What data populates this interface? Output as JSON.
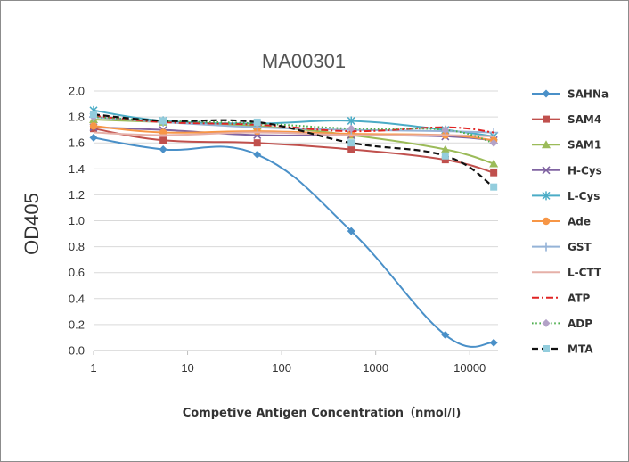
{
  "chart_data": {
    "type": "line",
    "title": "MA00301",
    "xlabel": "Competive Antigen Concentration（nmol/l)",
    "ylabel": "OD405",
    "x_scale": "log",
    "xlim": [
      1,
      20000
    ],
    "ylim": [
      0,
      2.0
    ],
    "x_ticks": [
      "1",
      "10",
      "100",
      "1000",
      "10000"
    ],
    "y_ticks": [
      "0.0",
      "0.2",
      "0.4",
      "0.6",
      "0.8",
      "1.0",
      "1.2",
      "1.4",
      "1.6",
      "1.8",
      "2.0"
    ],
    "grid": "horizontal",
    "legend_position": "right",
    "x": [
      1,
      5.5,
      55,
      550,
      5500,
      18000
    ],
    "series": [
      {
        "name": "SAHNa",
        "color": "#4a90c8",
        "marker": "diamond",
        "dash": "solid",
        "values": [
          1.64,
          1.55,
          1.51,
          0.92,
          0.12,
          0.06
        ]
      },
      {
        "name": "SAM4",
        "color": "#c0504d",
        "marker": "square",
        "dash": "solid",
        "values": [
          1.71,
          1.62,
          1.6,
          1.55,
          1.47,
          1.37
        ]
      },
      {
        "name": "SAM1",
        "color": "#9bbb59",
        "marker": "triangle",
        "dash": "solid",
        "values": [
          1.78,
          1.76,
          1.73,
          1.66,
          1.55,
          1.44
        ]
      },
      {
        "name": "H-Cys",
        "color": "#8064a2",
        "marker": "x",
        "dash": "solid",
        "values": [
          1.72,
          1.7,
          1.66,
          1.66,
          1.65,
          1.62
        ]
      },
      {
        "name": "L-Cys",
        "color": "#4bacc6",
        "marker": "star",
        "dash": "solid",
        "values": [
          1.85,
          1.77,
          1.75,
          1.77,
          1.7,
          1.65
        ]
      },
      {
        "name": "Ade",
        "color": "#f79646",
        "marker": "circle",
        "dash": "solid",
        "values": [
          1.73,
          1.68,
          1.69,
          1.67,
          1.66,
          1.62
        ]
      },
      {
        "name": "GST",
        "color": "#95b3d7",
        "marker": "plus",
        "dash": "solid",
        "values": [
          1.8,
          1.76,
          1.72,
          1.7,
          1.69,
          1.68
        ]
      },
      {
        "name": "L-CTT",
        "color": "#e6b0a8",
        "marker": "none",
        "dash": "solid",
        "values": [
          1.68,
          1.66,
          1.68,
          1.66,
          1.66,
          1.65
        ]
      },
      {
        "name": "ATP",
        "color": "#e02424",
        "marker": "none",
        "dash": "dashdot",
        "values": [
          1.81,
          1.76,
          1.74,
          1.69,
          1.72,
          1.68
        ]
      },
      {
        "name": "ADP",
        "color": "#4cae4c",
        "marker": "diamond-grey",
        "dash": "dotted",
        "values": [
          1.8,
          1.77,
          1.75,
          1.71,
          1.7,
          1.6
        ]
      },
      {
        "name": "MTA",
        "color": "#111111",
        "marker": "square-cyan",
        "dash": "dashed",
        "values": [
          1.82,
          1.77,
          1.76,
          1.6,
          1.5,
          1.26
        ]
      }
    ]
  }
}
